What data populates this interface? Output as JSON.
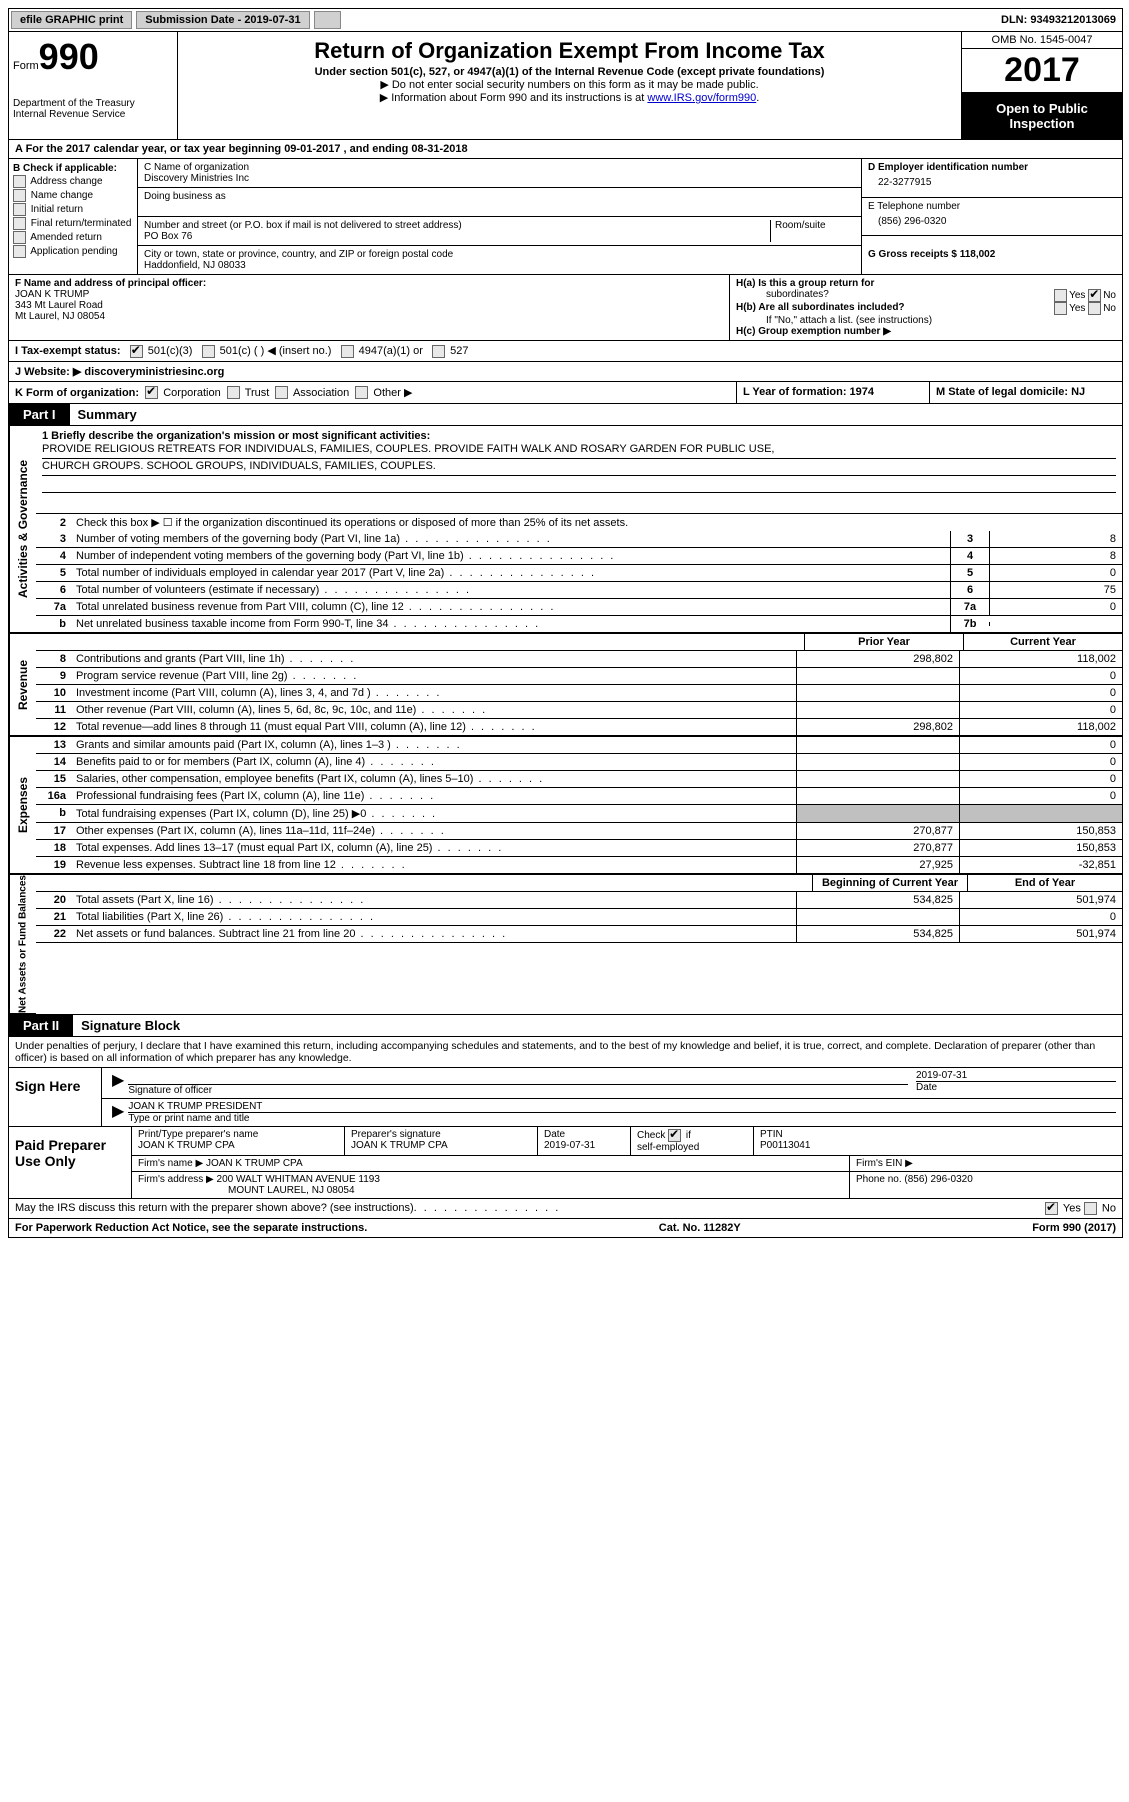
{
  "topbar": {
    "efile": "efile GRAPHIC print",
    "submission": "Submission Date - 2019-07-31",
    "dln": "DLN: 93493212013069"
  },
  "header": {
    "form_label": "Form",
    "form_number": "990",
    "dept": "Department of the Treasury",
    "irs": "Internal Revenue Service",
    "title": "Return of Organization Exempt From Income Tax",
    "subtitle": "Under section 501(c), 527, or 4947(a)(1) of the Internal Revenue Code (except private foundations)",
    "note1": "▶ Do not enter social security numbers on this form as it may be made public.",
    "note2_pre": "▶ Information about Form 990 and its instructions is at ",
    "note2_link": "www.IRS.gov/form990",
    "omb": "OMB No. 1545-0047",
    "year": "2017",
    "open": "Open to Public Inspection"
  },
  "row_a": "A  For the 2017 calendar year, or tax year beginning 09-01-2017    , and ending 08-31-2018",
  "section_b": {
    "label": "B Check if applicable:",
    "opts": [
      "Address change",
      "Name change",
      "Initial return",
      "Final return/terminated",
      "Amended return",
      "Application pending"
    ]
  },
  "section_c": {
    "name_label": "C Name of organization",
    "name": "Discovery Ministries Inc",
    "dba_label": "Doing business as",
    "street_label": "Number and street (or P.O. box if mail is not delivered to street address)",
    "room_label": "Room/suite",
    "street": "PO Box 76",
    "city_label": "City or town, state or province, country, and ZIP or foreign postal code",
    "city": "Haddonfield, NJ  08033"
  },
  "section_d": {
    "ein_label": "D Employer identification number",
    "ein": "22-3277915",
    "phone_label": "E Telephone number",
    "phone": "(856) 296-0320",
    "gross_label": "G Gross receipts $ 118,002"
  },
  "section_f": {
    "label": "F  Name and address of principal officer:",
    "name": "JOAN K TRUMP",
    "street": "343 Mt Laurel Road",
    "city": "Mt Laurel, NJ  08054"
  },
  "section_h": {
    "ha": "H(a)  Is this a group return for",
    "ha2": "subordinates?",
    "hb": "H(b)  Are all subordinates included?",
    "hb_note": "If \"No,\" attach a list. (see instructions)",
    "hc": "H(c)  Group exemption number ▶"
  },
  "row_i": "I   Tax-exempt status:",
  "row_i_opts": {
    "a": "501(c)(3)",
    "b": "501(c) (   ) ◀ (insert no.)",
    "c": "4947(a)(1) or",
    "d": "527"
  },
  "row_j": "J  Website: ▶  discoveryministriesinc.org",
  "row_k": "K Form of organization:",
  "row_k_opts": [
    "Corporation",
    "Trust",
    "Association",
    "Other ▶"
  ],
  "row_l": "L Year of formation: 1974",
  "row_m": "M State of legal domicile: NJ",
  "part1_label": "Part I",
  "part1_title": "Summary",
  "side_labels": {
    "gov": "Activities & Governance",
    "rev": "Revenue",
    "exp": "Expenses",
    "net": "Net Assets or Fund Balances"
  },
  "mission": {
    "label": "1   Briefly describe the organization's mission or most significant activities:",
    "line1": "PROVIDE RELIGIOUS RETREATS FOR INDIVIDUALS, FAMILIES, COUPLES. PROVIDE FAITH WALK AND ROSARY GARDEN FOR PUBLIC USE,",
    "line2": "CHURCH GROUPS. SCHOOL GROUPS, INDIVIDUALS, FAMILIES, COUPLES."
  },
  "line2": "Check this box ▶ ☐  if the organization discontinued its operations or disposed of more than 25% of its net assets.",
  "gov_lines": [
    {
      "n": "3",
      "d": "Number of voting members of the governing body (Part VI, line 1a)",
      "b": "3",
      "v": "8"
    },
    {
      "n": "4",
      "d": "Number of independent voting members of the governing body (Part VI, line 1b)",
      "b": "4",
      "v": "8"
    },
    {
      "n": "5",
      "d": "Total number of individuals employed in calendar year 2017 (Part V, line 2a)",
      "b": "5",
      "v": "0"
    },
    {
      "n": "6",
      "d": "Total number of volunteers (estimate if necessary)",
      "b": "6",
      "v": "75"
    },
    {
      "n": "7a",
      "d": "Total unrelated business revenue from Part VIII, column (C), line 12",
      "b": "7a",
      "v": "0"
    },
    {
      "n": "b",
      "d": "Net unrelated business taxable income from Form 990-T, line 34",
      "b": "7b",
      "v": ""
    }
  ],
  "col_headers": {
    "prior": "Prior Year",
    "current": "Current Year"
  },
  "rev_lines": [
    {
      "n": "8",
      "d": "Contributions and grants (Part VIII, line 1h)",
      "p": "298,802",
      "c": "118,002"
    },
    {
      "n": "9",
      "d": "Program service revenue (Part VIII, line 2g)",
      "p": "",
      "c": "0"
    },
    {
      "n": "10",
      "d": "Investment income (Part VIII, column (A), lines 3, 4, and 7d )",
      "p": "",
      "c": "0"
    },
    {
      "n": "11",
      "d": "Other revenue (Part VIII, column (A), lines 5, 6d, 8c, 9c, 10c, and 11e)",
      "p": "",
      "c": "0"
    },
    {
      "n": "12",
      "d": "Total revenue—add lines 8 through 11 (must equal Part VIII, column (A), line 12)",
      "p": "298,802",
      "c": "118,002"
    }
  ],
  "exp_lines": [
    {
      "n": "13",
      "d": "Grants and similar amounts paid (Part IX, column (A), lines 1–3 )",
      "p": "",
      "c": "0"
    },
    {
      "n": "14",
      "d": "Benefits paid to or for members (Part IX, column (A), line 4)",
      "p": "",
      "c": "0"
    },
    {
      "n": "15",
      "d": "Salaries, other compensation, employee benefits (Part IX, column (A), lines 5–10)",
      "p": "",
      "c": "0"
    },
    {
      "n": "16a",
      "d": "Professional fundraising fees (Part IX, column (A), line 11e)",
      "p": "",
      "c": "0"
    },
    {
      "n": "b",
      "d": "Total fundraising expenses (Part IX, column (D), line 25) ▶0",
      "p": "SHADED",
      "c": "SHADED"
    },
    {
      "n": "17",
      "d": "Other expenses (Part IX, column (A), lines 11a–11d, 11f–24e)",
      "p": "270,877",
      "c": "150,853"
    },
    {
      "n": "18",
      "d": "Total expenses. Add lines 13–17 (must equal Part IX, column (A), line 25)",
      "p": "270,877",
      "c": "150,853"
    },
    {
      "n": "19",
      "d": "Revenue less expenses. Subtract line 18 from line 12",
      "p": "27,925",
      "c": "-32,851"
    }
  ],
  "net_headers": {
    "begin": "Beginning of Current Year",
    "end": "End of Year"
  },
  "net_lines": [
    {
      "n": "20",
      "d": "Total assets (Part X, line 16)",
      "p": "534,825",
      "c": "501,974"
    },
    {
      "n": "21",
      "d": "Total liabilities (Part X, line 26)",
      "p": "",
      "c": "0"
    },
    {
      "n": "22",
      "d": "Net assets or fund balances. Subtract line 21 from line 20",
      "p": "534,825",
      "c": "501,974"
    }
  ],
  "part2_label": "Part II",
  "part2_title": "Signature Block",
  "penalties": "Under penalties of perjury, I declare that I have examined this return, including accompanying schedules and statements, and to the best of my knowledge and belief, it is true, correct, and complete. Declaration of preparer (other than officer) is based on all information of which preparer has any knowledge.",
  "sign": {
    "label": "Sign Here",
    "sig_label": "Signature of officer",
    "date_label": "Date",
    "date": "2019-07-31",
    "name": "JOAN K TRUMP PRESIDENT",
    "name_label": "Type or print name and title"
  },
  "prep": {
    "label": "Paid Preparer Use Only",
    "name_label": "Print/Type preparer's name",
    "name": "JOAN K TRUMP CPA",
    "sig_label": "Preparer's signature",
    "sig": "JOAN K TRUMP CPA",
    "date_label": "Date",
    "date": "2019-07-31",
    "check_label": "Check ☑ if self-employed",
    "ptin_label": "PTIN",
    "ptin": "P00113041",
    "firm_label": "Firm's name    ▶",
    "firm": "JOAN K TRUMP CPA",
    "ein_label": "Firm's EIN ▶",
    "addr_label": "Firm's address ▶",
    "addr1": "200 WALT WHITMAN AVENUE 1193",
    "addr2": "MOUNT LAUREL, NJ  08054",
    "phone_label": "Phone no. (856) 296-0320"
  },
  "discuss": "May the IRS discuss this return with the preparer shown above? (see instructions)",
  "footer": {
    "left": "For Paperwork Reduction Act Notice, see the separate instructions.",
    "center": "Cat. No. 11282Y",
    "right": "Form 990 (2017)"
  }
}
